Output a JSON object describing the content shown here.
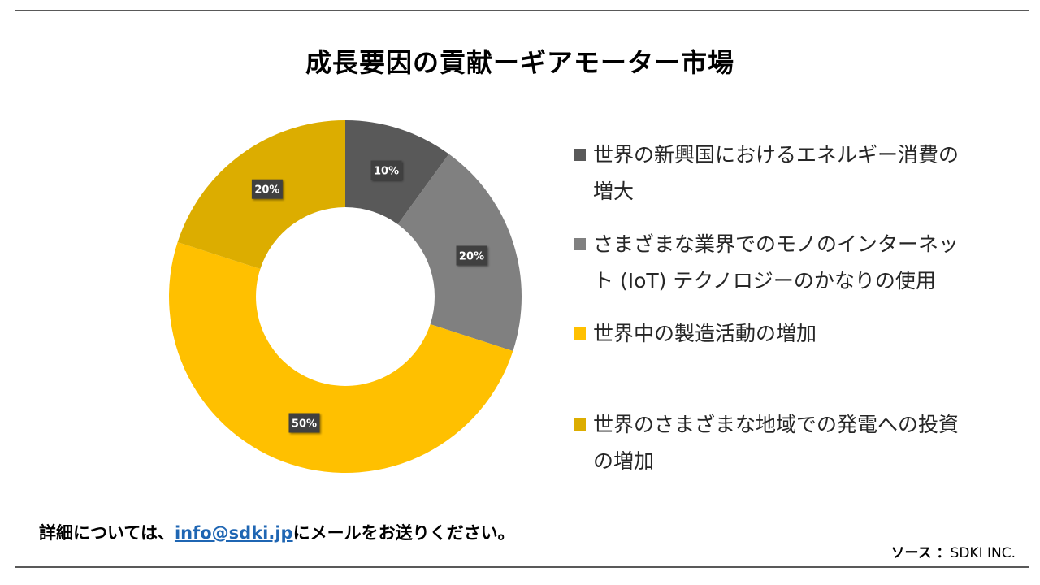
{
  "title": "成長要因の貢献ーギアモーター市場",
  "chart_data": {
    "type": "pie",
    "donut": true,
    "title": "成長要因の貢献ーギアモーター市場",
    "series": [
      {
        "name": "世界の新興国におけるエネルギー消費の増大",
        "value": 10,
        "label": "10%",
        "color": "#595959"
      },
      {
        "name": "さまざまな業界でのモノのインターネット (IoT) テクノロジーのかなりの使用",
        "value": 20,
        "label": "20%",
        "color": "#808080"
      },
      {
        "name": "世界中の製造活動の増加",
        "value": 50,
        "label": "50%",
        "color": "#ffc000"
      },
      {
        "name": "世界のさまざまな地域での発電への投資の増加",
        "value": 20,
        "label": "20%",
        "color": "#dcad00"
      }
    ],
    "legend_position": "right"
  },
  "legend": [
    {
      "lines": [
        "世界の新興国におけるエネルギー消費の",
        "増大"
      ]
    },
    {
      "lines": [
        "さまざまな業界でのモノのインターネッ",
        "ト (IoT) テクノロジーのかなりの使用"
      ]
    },
    {
      "lines": [
        "世界中の製造活動の増加"
      ]
    },
    {
      "lines": [
        "世界のさまざまな地域での発電への投資",
        "の増加"
      ]
    }
  ],
  "footer": {
    "prefix": "詳細については、",
    "email": "info@sdki.jp",
    "suffix": "にメールをお送りください。"
  },
  "source": {
    "label": "ソース ：",
    "value": "SDKI INC."
  }
}
